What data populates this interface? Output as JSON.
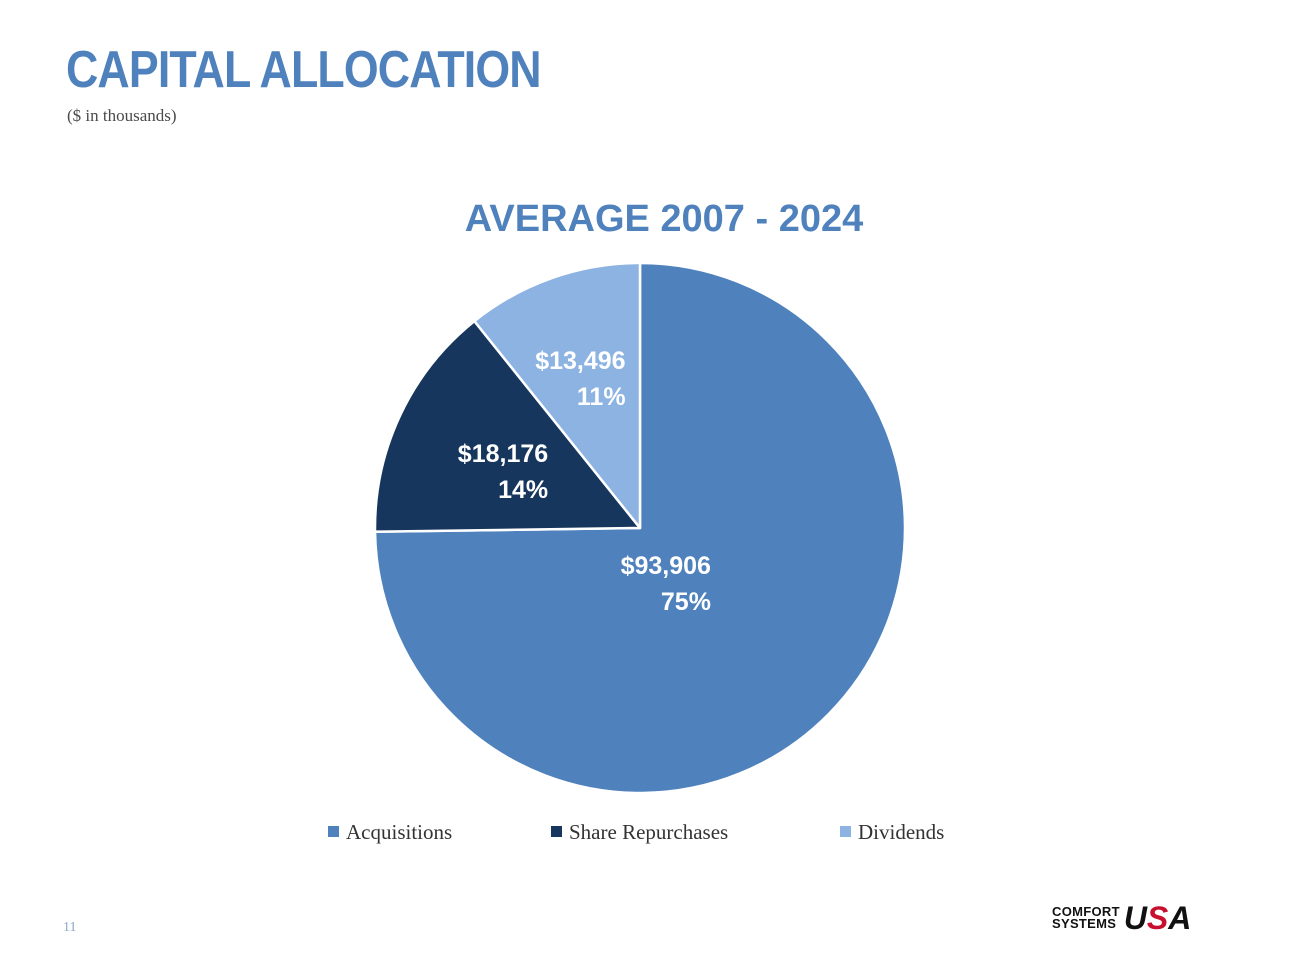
{
  "slide": {
    "title": "CAPITAL ALLOCATION",
    "subtitle": "($ in thousands)",
    "page_number": "11"
  },
  "logo": {
    "line1": "COMFORT",
    "line2": "SYSTEMS",
    "usa_u": "U",
    "usa_s": "S",
    "usa_a": "A"
  },
  "chart_data": {
    "type": "pie",
    "title": "AVERAGE 2007 - 2024",
    "start_angle_deg": 0,
    "direction": "clockwise",
    "legend_position": "bottom",
    "slices": [
      {
        "name": "Acquisitions",
        "value": 93906,
        "value_label": "$93,906",
        "percent_label": "75%",
        "color": "#4f81bd"
      },
      {
        "name": "Share Repurchases",
        "value": 18176,
        "value_label": "$18,176",
        "percent_label": "14%",
        "color": "#17365d"
      },
      {
        "name": "Dividends",
        "value": 13496,
        "value_label": "$13,496",
        "percent_label": "11%",
        "color": "#8db3e2"
      }
    ]
  }
}
